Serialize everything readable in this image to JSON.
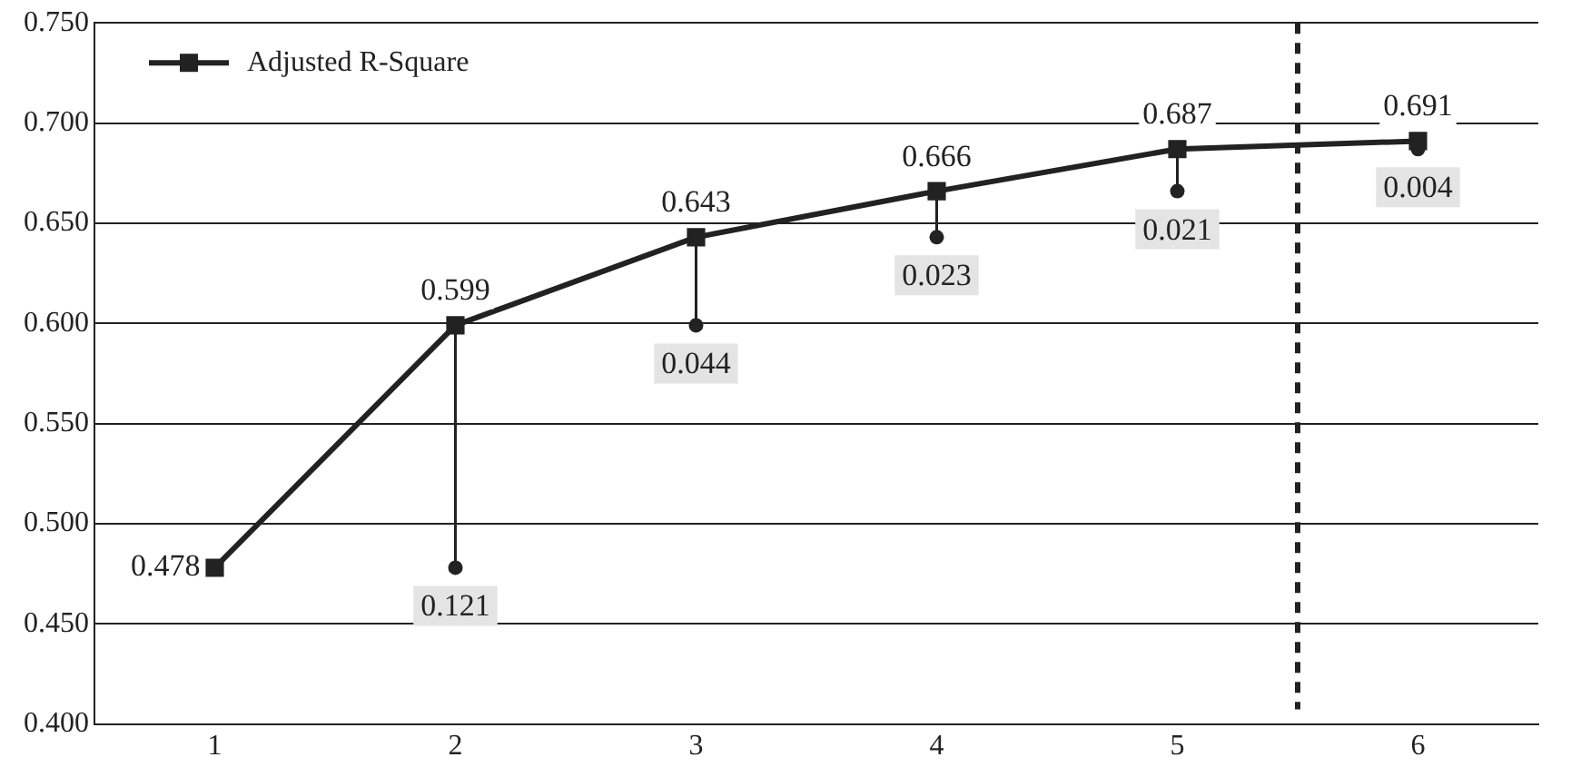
{
  "chart_data": {
    "type": "line",
    "x": [
      1,
      2,
      3,
      4,
      5,
      6
    ],
    "xlim": [
      0.5,
      6.5
    ],
    "xticks": [
      1,
      2,
      3,
      4,
      5,
      6
    ],
    "ylim": [
      0.4,
      0.75
    ],
    "yticks": [
      {
        "value": 0.4,
        "label": "0.400"
      },
      {
        "value": 0.45,
        "label": "0.450"
      },
      {
        "value": 0.5,
        "label": "0.500"
      },
      {
        "value": 0.55,
        "label": "0.550"
      },
      {
        "value": 0.6,
        "label": "0.600"
      },
      {
        "value": 0.65,
        "label": "0.650"
      },
      {
        "value": 0.7,
        "label": "0.700"
      },
      {
        "value": 0.75,
        "label": "0.750"
      }
    ],
    "series": [
      {
        "name": "Adjusted R-Square",
        "color": "#222222",
        "values": [
          0.478,
          0.599,
          0.643,
          0.666,
          0.687,
          0.691
        ],
        "errors": [
          null,
          [
            0.478,
            0.599
          ],
          [
            0.599,
            0.643
          ],
          [
            0.643,
            0.666
          ],
          [
            0.666,
            0.687
          ],
          [
            0.687,
            0.691
          ]
        ]
      }
    ],
    "data_labels": true,
    "marker": "square",
    "line_style": "solid",
    "grid": "y",
    "legend": "top left",
    "ref_lines": [
      {
        "axis": "x",
        "value": 5.5,
        "line_style": "dashed",
        "color": "#222222"
      }
    ],
    "annotations": [
      {
        "text": "0.121",
        "x": 2,
        "y": 0.478
      },
      {
        "text": "0.044",
        "x": 3,
        "y": 0.599
      },
      {
        "text": "0.023",
        "x": 4,
        "y": 0.643
      },
      {
        "text": "0.021",
        "x": 5,
        "y": 0.666
      },
      {
        "text": "0.004",
        "x": 6,
        "y": 0.687
      }
    ]
  }
}
